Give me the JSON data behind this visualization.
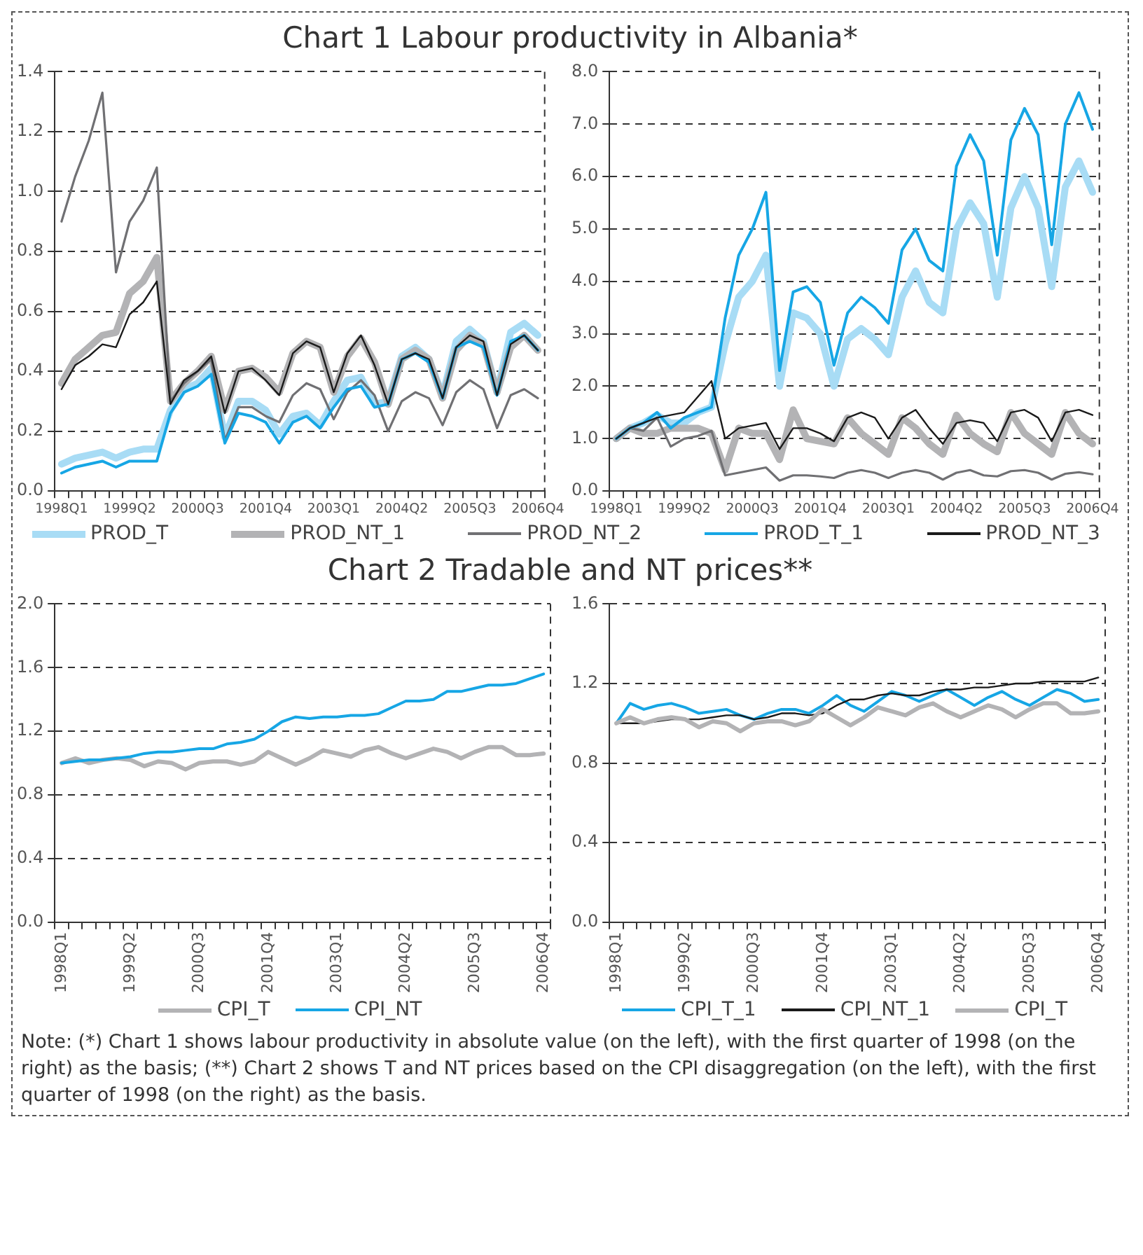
{
  "chart_data": [
    {
      "type": "line",
      "title": "Chart 1 Labour productivity in Albania*",
      "categories": [
        "1998Q1",
        null,
        null,
        null,
        null,
        "1999Q2",
        null,
        null,
        null,
        null,
        "2000Q3",
        null,
        null,
        null,
        null,
        "2001Q4",
        null,
        null,
        null,
        null,
        "2003Q1",
        null,
        null,
        null,
        null,
        "2004Q2",
        null,
        null,
        null,
        null,
        "2005Q3",
        null,
        null,
        null,
        null,
        "2006Q4"
      ],
      "ylim": [
        0,
        1.4
      ],
      "yticks": [
        {
          "value": 0,
          "label": "0.0"
        },
        {
          "value": 0.2,
          "label": "0.2"
        },
        {
          "value": 0.4,
          "label": "0.4"
        },
        {
          "value": 0.6,
          "label": "0.6"
        },
        {
          "value": 0.8,
          "label": "0.8"
        },
        {
          "value": 1,
          "label": "1.0"
        },
        {
          "value": 1.2,
          "label": "1.2"
        },
        {
          "value": 1.4,
          "label": "1.4"
        }
      ],
      "grid": "y",
      "legend": "bottom",
      "series": [
        {
          "name": "PROD_T",
          "color": "#a8dcf5",
          "values": [
            0.09,
            0.11,
            0.12,
            0.13,
            0.11,
            0.13,
            0.14,
            0.14,
            0.27,
            0.34,
            0.36,
            0.41,
            0.18,
            0.3,
            0.3,
            0.27,
            0.19,
            0.25,
            0.26,
            0.22,
            0.3,
            0.37,
            0.38,
            0.29,
            0.3,
            0.45,
            0.48,
            0.44,
            0.32,
            0.5,
            0.54,
            0.5,
            0.33,
            0.53,
            0.56,
            0.52
          ]
        },
        {
          "name": "PROD_NT_1",
          "color": "#b3b3b5",
          "values": [
            0.36,
            0.44,
            0.48,
            0.52,
            0.53,
            0.66,
            0.7,
            0.78,
            0.3,
            0.36,
            0.4,
            0.45,
            0.27,
            0.4,
            0.41,
            0.38,
            0.33,
            0.46,
            0.5,
            0.48,
            0.33,
            0.45,
            0.51,
            0.43,
            0.29,
            0.44,
            0.47,
            0.44,
            0.31,
            0.47,
            0.52,
            0.49,
            0.33,
            0.48,
            0.52,
            0.47
          ]
        },
        {
          "name": "PROD_NT_2",
          "color": "#707073",
          "values": [
            0.9,
            1.05,
            1.17,
            1.33,
            0.73,
            0.9,
            0.97,
            1.08,
            0.3,
            0.36,
            0.4,
            0.44,
            0.17,
            0.28,
            0.28,
            0.25,
            0.23,
            0.32,
            0.36,
            0.34,
            0.24,
            0.33,
            0.37,
            0.32,
            0.2,
            0.3,
            0.33,
            0.31,
            0.22,
            0.33,
            0.37,
            0.34,
            0.21,
            0.32,
            0.34,
            0.31
          ]
        },
        {
          "name": "PROD_T_1",
          "color": "#16a6e5",
          "values": [
            0.06,
            0.08,
            0.09,
            0.1,
            0.08,
            0.1,
            0.1,
            0.1,
            0.26,
            0.33,
            0.35,
            0.39,
            0.16,
            0.26,
            0.25,
            0.23,
            0.16,
            0.23,
            0.25,
            0.21,
            0.28,
            0.34,
            0.35,
            0.28,
            0.29,
            0.44,
            0.46,
            0.43,
            0.31,
            0.48,
            0.5,
            0.48,
            0.32,
            0.5,
            0.52,
            0.47
          ]
        },
        {
          "name": "PROD_NT_3",
          "color": "#1a1a1a",
          "values": [
            0.34,
            0.42,
            0.45,
            0.49,
            0.48,
            0.59,
            0.63,
            0.7,
            0.29,
            0.37,
            0.4,
            0.45,
            0.26,
            0.4,
            0.41,
            0.37,
            0.32,
            0.46,
            0.5,
            0.48,
            0.33,
            0.46,
            0.52,
            0.42,
            0.29,
            0.44,
            0.46,
            0.44,
            0.31,
            0.48,
            0.52,
            0.5,
            0.32,
            0.49,
            0.52,
            0.47
          ]
        }
      ]
    },
    {
      "type": "line",
      "categories": [
        "1998Q1",
        null,
        null,
        null,
        null,
        "1999Q2",
        null,
        null,
        null,
        null,
        "2000Q3",
        null,
        null,
        null,
        null,
        "2001Q4",
        null,
        null,
        null,
        null,
        "2003Q1",
        null,
        null,
        null,
        null,
        "2004Q2",
        null,
        null,
        null,
        null,
        "2005Q3",
        null,
        null,
        null,
        null,
        "2006Q4"
      ],
      "ylim": [
        0,
        8
      ],
      "yticks": [
        {
          "value": 0,
          "label": "0.0"
        },
        {
          "value": 1,
          "label": "1.0"
        },
        {
          "value": 2,
          "label": "2.0"
        },
        {
          "value": 3,
          "label": "3.0"
        },
        {
          "value": 4,
          "label": "4.0"
        },
        {
          "value": 5,
          "label": "5.0"
        },
        {
          "value": 6,
          "label": "6.0"
        },
        {
          "value": 7,
          "label": "7.0"
        },
        {
          "value": 8,
          "label": "8.0"
        }
      ],
      "grid": "y",
      "series": [
        {
          "color": "#a8dcf5",
          "values": [
            1,
            1.2,
            1.3,
            1.45,
            1.3,
            1.3,
            1.5,
            1.6,
            2.8,
            3.7,
            4,
            4.5,
            2,
            3.4,
            3.3,
            3,
            2,
            2.9,
            3.1,
            2.9,
            2.6,
            3.7,
            4.2,
            3.6,
            3.4,
            5,
            5.5,
            5.1,
            3.7,
            5.4,
            6,
            5.4,
            3.9,
            5.8,
            6.3,
            5.7
          ]
        },
        {
          "color": "#b3b3b5",
          "values": [
            1,
            1.2,
            1.1,
            1.1,
            1.2,
            1.2,
            1.2,
            1.1,
            0.4,
            1.2,
            1.1,
            1.1,
            0.6,
            1.55,
            1,
            0.95,
            0.9,
            1.4,
            1.1,
            0.9,
            0.7,
            1.4,
            1.2,
            0.9,
            0.7,
            1.45,
            1.1,
            0.9,
            0.75,
            1.5,
            1.1,
            0.9,
            0.7,
            1.5,
            1.1,
            0.9
          ]
        },
        {
          "color": "#707073",
          "values": [
            1,
            1.2,
            1.15,
            1.4,
            0.85,
            1,
            1.05,
            1.15,
            0.3,
            0.35,
            0.4,
            0.45,
            0.2,
            0.3,
            0.3,
            0.28,
            0.25,
            0.35,
            0.4,
            0.35,
            0.25,
            0.35,
            0.4,
            0.35,
            0.22,
            0.35,
            0.4,
            0.3,
            0.28,
            0.38,
            0.4,
            0.35,
            0.22,
            0.33,
            0.36,
            0.32
          ]
        },
        {
          "color": "#16a6e5",
          "values": [
            1,
            1.2,
            1.3,
            1.5,
            1.2,
            1.4,
            1.5,
            1.6,
            3.3,
            4.5,
            5,
            5.7,
            2.3,
            3.8,
            3.9,
            3.6,
            2.4,
            3.4,
            3.7,
            3.5,
            3.2,
            4.6,
            5,
            4.4,
            4.2,
            6.2,
            6.8,
            6.3,
            4.5,
            6.7,
            7.3,
            6.8,
            4.7,
            7,
            7.6,
            6.9
          ]
        },
        {
          "color": "#1a1a1a",
          "values": [
            1,
            1.2,
            1.3,
            1.4,
            1.45,
            1.5,
            1.8,
            2.1,
            1,
            1.2,
            1.25,
            1.3,
            0.8,
            1.2,
            1.2,
            1.1,
            0.95,
            1.4,
            1.5,
            1.4,
            1,
            1.4,
            1.55,
            1.2,
            0.9,
            1.3,
            1.35,
            1.3,
            0.95,
            1.5,
            1.55,
            1.4,
            0.95,
            1.5,
            1.55,
            1.45
          ]
        }
      ]
    },
    {
      "type": "line",
      "title": "Chart 2 Tradable and NT prices**",
      "categories": [
        "1998Q1",
        null,
        null,
        null,
        null,
        "1999Q2",
        null,
        null,
        null,
        null,
        "2000Q3",
        null,
        null,
        null,
        null,
        "2001Q4",
        null,
        null,
        null,
        null,
        "2003Q1",
        null,
        null,
        null,
        null,
        "2004Q2",
        null,
        null,
        null,
        null,
        "2005Q3",
        null,
        null,
        null,
        null,
        "2006Q4"
      ],
      "ylim": [
        0,
        2
      ],
      "yticks": [
        {
          "value": 0,
          "label": "0.0"
        },
        {
          "value": 0.4,
          "label": "0.4"
        },
        {
          "value": 0.8,
          "label": "0.8"
        },
        {
          "value": 1.2,
          "label": "1.2"
        },
        {
          "value": 1.6,
          "label": "1.6"
        },
        {
          "value": 2,
          "label": "2.0"
        }
      ],
      "grid": "y",
      "legend": "bottom",
      "series": [
        {
          "name": "CPI_T",
          "color": "#b3b3b5",
          "values": [
            1,
            1.03,
            1,
            1.02,
            1.03,
            1.02,
            0.98,
            1.01,
            1,
            0.96,
            1,
            1.01,
            1.01,
            0.99,
            1.01,
            1.07,
            1.03,
            0.99,
            1.03,
            1.08,
            1.06,
            1.04,
            1.08,
            1.1,
            1.06,
            1.03,
            1.06,
            1.09,
            1.07,
            1.03,
            1.07,
            1.1,
            1.1,
            1.05,
            1.05,
            1.06
          ]
        },
        {
          "name": "CPI_NT",
          "color": "#16a6e5",
          "values": [
            1,
            1.01,
            1.02,
            1.02,
            1.03,
            1.04,
            1.06,
            1.07,
            1.07,
            1.08,
            1.09,
            1.09,
            1.12,
            1.13,
            1.15,
            1.2,
            1.26,
            1.29,
            1.28,
            1.29,
            1.29,
            1.3,
            1.3,
            1.31,
            1.35,
            1.39,
            1.39,
            1.4,
            1.45,
            1.45,
            1.47,
            1.49,
            1.49,
            1.5,
            1.53,
            1.56
          ]
        }
      ]
    },
    {
      "type": "line",
      "categories": [
        "1998Q1",
        null,
        null,
        null,
        null,
        "1999Q2",
        null,
        null,
        null,
        null,
        "2000Q3",
        null,
        null,
        null,
        null,
        "2001Q4",
        null,
        null,
        null,
        null,
        "2003Q1",
        null,
        null,
        null,
        null,
        "2004Q2",
        null,
        null,
        null,
        null,
        "2005Q3",
        null,
        null,
        null,
        null,
        "2006Q4"
      ],
      "ylim": [
        0,
        1.6
      ],
      "yticks": [
        {
          "value": 0,
          "label": "0.0"
        },
        {
          "value": 0.4,
          "label": "0.4"
        },
        {
          "value": 0.8,
          "label": "0.8"
        },
        {
          "value": 1.2,
          "label": "1.2"
        },
        {
          "value": 1.6,
          "label": "1.6"
        }
      ],
      "grid": "y",
      "legend": "bottom",
      "annotations": [
        "Note: (*) Chart 1 shows labour productivity in absolute value (on the left), with the first quarter of 1998 (on the right) as the basis; (**) Chart 2 shows T and NT prices based on the CPI disaggregation (on the left), with the first quarter of 1998 (on the right) as the basis."
      ],
      "series": [
        {
          "name": "CPI_T_1",
          "color": "#16a6e5",
          "values": [
            1,
            1.1,
            1.07,
            1.09,
            1.1,
            1.08,
            1.05,
            1.06,
            1.07,
            1.04,
            1.02,
            1.05,
            1.07,
            1.07,
            1.05,
            1.09,
            1.14,
            1.09,
            1.06,
            1.11,
            1.16,
            1.14,
            1.11,
            1.14,
            1.17,
            1.13,
            1.09,
            1.13,
            1.16,
            1.12,
            1.09,
            1.13,
            1.17,
            1.15,
            1.11,
            1.12
          ]
        },
        {
          "name": "CPI_NT_1",
          "color": "#1a1a1a",
          "values": [
            1,
            1,
            1,
            1.01,
            1.02,
            1.02,
            1.02,
            1.03,
            1.04,
            1.04,
            1.02,
            1.03,
            1.05,
            1.05,
            1.04,
            1.05,
            1.09,
            1.12,
            1.12,
            1.14,
            1.15,
            1.14,
            1.14,
            1.16,
            1.17,
            1.17,
            1.18,
            1.18,
            1.19,
            1.2,
            1.2,
            1.21,
            1.21,
            1.21,
            1.21,
            1.23
          ]
        },
        {
          "name": "CPI_T",
          "color": "#b3b3b5",
          "values": [
            1,
            1.03,
            1,
            1.02,
            1.03,
            1.02,
            0.98,
            1.01,
            1,
            0.96,
            1,
            1.01,
            1.01,
            0.99,
            1.01,
            1.07,
            1.03,
            0.99,
            1.03,
            1.08,
            1.06,
            1.04,
            1.08,
            1.1,
            1.06,
            1.03,
            1.06,
            1.09,
            1.07,
            1.03,
            1.07,
            1.1,
            1.1,
            1.05,
            1.05,
            1.06
          ]
        }
      ]
    }
  ]
}
